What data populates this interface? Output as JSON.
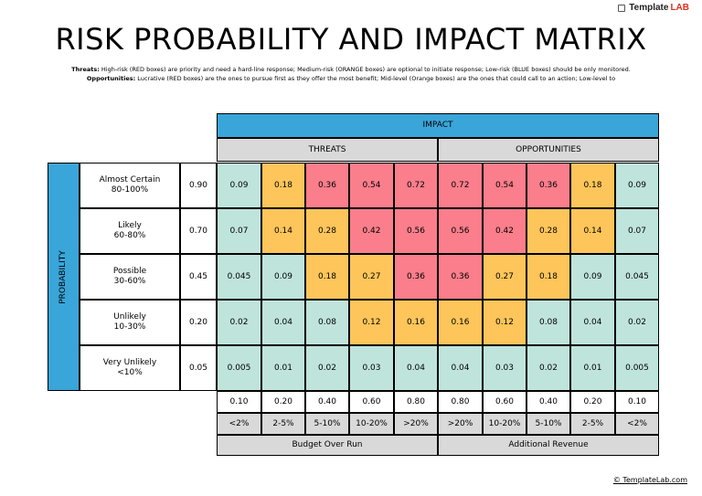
{
  "brand": {
    "logo_text": "Template",
    "logo_accent": "LAB"
  },
  "title": "RISK PROBABILITY AND IMPACT MATRIX",
  "notes": {
    "threats_label": "Threats:",
    "threats_text": "High-risk (RED boxes) are priority and need a hard-line response; Medium-risk (ORANGE boxes) are optional to initiate response; Low-risk (BLUE boxes) should be only monitored.",
    "opps_label": "Opportunities:",
    "opps_text": "Lucrative (RED boxes) are the ones to pursue first as they offer the most benefit; Mid-level (Orange boxes) are the ones that could call to an action; Low-level to"
  },
  "matrix": {
    "impact_label": "IMPACT",
    "threats_label": "THREATS",
    "opportunities_label": "OPPORTUNITIES",
    "probability_label": "PROBABILITY",
    "rows": [
      {
        "label1": "Almost Certain",
        "label2": "80-100%",
        "value": "0.90",
        "cells": [
          "0.09",
          "0.18",
          "0.36",
          "0.54",
          "0.72",
          "0.72",
          "0.54",
          "0.36",
          "0.18",
          "0.09"
        ],
        "colors": [
          "g",
          "o",
          "r",
          "r",
          "r",
          "r",
          "r",
          "r",
          "o",
          "g"
        ]
      },
      {
        "label1": "Likely",
        "label2": "60-80%",
        "value": "0.70",
        "cells": [
          "0.07",
          "0.14",
          "0.28",
          "0.42",
          "0.56",
          "0.56",
          "0.42",
          "0.28",
          "0.14",
          "0.07"
        ],
        "colors": [
          "g",
          "o",
          "o",
          "r",
          "r",
          "r",
          "r",
          "o",
          "o",
          "g"
        ]
      },
      {
        "label1": "Possible",
        "label2": "30-60%",
        "value": "0.45",
        "cells": [
          "0.045",
          "0.09",
          "0.18",
          "0.27",
          "0.36",
          "0.36",
          "0.27",
          "0.18",
          "0.09",
          "0.045"
        ],
        "colors": [
          "g",
          "g",
          "o",
          "o",
          "r",
          "r",
          "o",
          "o",
          "g",
          "g"
        ]
      },
      {
        "label1": "Unlikely",
        "label2": "10-30%",
        "value": "0.20",
        "cells": [
          "0.02",
          "0.04",
          "0.08",
          "0.12",
          "0.16",
          "0.16",
          "0.12",
          "0.08",
          "0.04",
          "0.02"
        ],
        "colors": [
          "g",
          "g",
          "g",
          "o",
          "o",
          "o",
          "o",
          "g",
          "g",
          "g"
        ]
      },
      {
        "label1": "Very Unlikely",
        "label2": "<10%",
        "value": "0.05",
        "cells": [
          "0.005",
          "0.01",
          "0.02",
          "0.03",
          "0.04",
          "0.04",
          "0.03",
          "0.02",
          "0.01",
          "0.005"
        ],
        "colors": [
          "g",
          "g",
          "g",
          "g",
          "g",
          "g",
          "g",
          "g",
          "g",
          "g"
        ]
      }
    ],
    "impact_values": [
      "0.10",
      "0.20",
      "0.40",
      "0.60",
      "0.80",
      "0.80",
      "0.60",
      "0.40",
      "0.20",
      "0.10"
    ],
    "impact_percents": [
      "<2%",
      "2-5%",
      "5-10%",
      "10-20%",
      ">20%",
      ">20%",
      "10-20%",
      "5-10%",
      "2-5%",
      "<2%"
    ],
    "budget_label": "Budget Over Run",
    "revenue_label": "Additional Revenue"
  },
  "colors": {
    "g": "#bfe4dc",
    "o": "#fdc55a",
    "r": "#fa7e8b",
    "header_blue": "#3aa5d9",
    "header_gray": "#d9d9d9"
  },
  "footer": {
    "copyright": "© TemplateLab.com"
  }
}
